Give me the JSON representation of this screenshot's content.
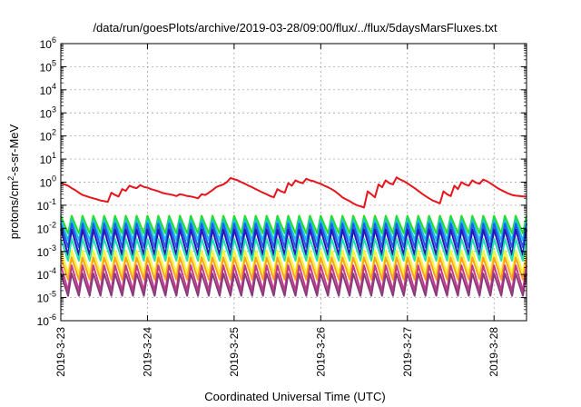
{
  "chart_data": {
    "type": "line",
    "title": "/data/run/goesPlots/archive/2019-03-28/09:00/flux/../flux/5daysMarsFluxes.txt",
    "xlabel": "Coordinated Universal Time (UTC)",
    "ylabel_pre": "protons/cm",
    "ylabel_sup": "2",
    "ylabel_post": "-s-sr-MeV",
    "y_scale": "log",
    "ylim": [
      1e-06,
      1000000.0
    ],
    "y_ticks": [
      {
        "base": "10",
        "exp": "-6"
      },
      {
        "base": "10",
        "exp": "-5"
      },
      {
        "base": "10",
        "exp": "-4"
      },
      {
        "base": "10",
        "exp": "-3"
      },
      {
        "base": "10",
        "exp": "-2"
      },
      {
        "base": "10",
        "exp": "-1"
      },
      {
        "base": "10",
        "exp": "0"
      },
      {
        "base": "10",
        "exp": "1"
      },
      {
        "base": "10",
        "exp": "2"
      },
      {
        "base": "10",
        "exp": "3"
      },
      {
        "base": "10",
        "exp": "4"
      },
      {
        "base": "10",
        "exp": "5"
      },
      {
        "base": "10",
        "exp": "6"
      }
    ],
    "x_ticks": [
      "2019-3-23",
      "2019-3-24",
      "2019-3-25",
      "2019-3-26",
      "2019-3-27",
      "2019-3-28"
    ],
    "xlim": [
      "2019-03-23 00:00",
      "2019-03-28 09:00"
    ],
    "grid": true,
    "series": [
      {
        "color": "#e8141b",
        "x": [
          "2019-03-23 00:00",
          "2019-03-23 01:00",
          "2019-03-23 02:00",
          "2019-03-23 03:00",
          "2019-03-23 04:00",
          "2019-03-23 05:00",
          "2019-03-23 06:00",
          "2019-03-23 07:00",
          "2019-03-23 08:00",
          "2019-03-23 09:00",
          "2019-03-23 10:00",
          "2019-03-23 11:00",
          "2019-03-23 12:00",
          "2019-03-23 13:00",
          "2019-03-23 14:00",
          "2019-03-23 15:00",
          "2019-03-23 16:00",
          "2019-03-23 17:00",
          "2019-03-23 18:00",
          "2019-03-23 19:00",
          "2019-03-23 20:00",
          "2019-03-23 21:00",
          "2019-03-23 22:00",
          "2019-03-23 23:00",
          "2019-03-24 00:00",
          "2019-03-24 01:00",
          "2019-03-24 02:00",
          "2019-03-24 03:00",
          "2019-03-24 04:00",
          "2019-03-24 05:00",
          "2019-03-24 06:00",
          "2019-03-24 07:00",
          "2019-03-24 08:00",
          "2019-03-24 09:00",
          "2019-03-24 10:00",
          "2019-03-24 11:00",
          "2019-03-24 12:00",
          "2019-03-24 13:00",
          "2019-03-24 14:00",
          "2019-03-24 15:00",
          "2019-03-24 16:00",
          "2019-03-24 17:00",
          "2019-03-24 18:00",
          "2019-03-24 19:00",
          "2019-03-24 20:00",
          "2019-03-24 21:00",
          "2019-03-24 22:00",
          "2019-03-24 23:00",
          "2019-03-25 00:00",
          "2019-03-25 01:00",
          "2019-03-25 02:00",
          "2019-03-25 03:00",
          "2019-03-25 04:00",
          "2019-03-25 05:00",
          "2019-03-25 06:00",
          "2019-03-25 07:00",
          "2019-03-25 08:00",
          "2019-03-25 09:00",
          "2019-03-25 10:00",
          "2019-03-25 11:00",
          "2019-03-25 12:00",
          "2019-03-25 13:00",
          "2019-03-25 14:00",
          "2019-03-25 15:00",
          "2019-03-25 16:00",
          "2019-03-25 17:00",
          "2019-03-25 18:00",
          "2019-03-25 19:00",
          "2019-03-25 20:00",
          "2019-03-25 21:00",
          "2019-03-25 22:00",
          "2019-03-25 23:00",
          "2019-03-26 00:00",
          "2019-03-26 01:00",
          "2019-03-26 02:00",
          "2019-03-26 03:00",
          "2019-03-26 04:00",
          "2019-03-26 05:00",
          "2019-03-26 06:00",
          "2019-03-26 07:00",
          "2019-03-26 08:00",
          "2019-03-26 09:00",
          "2019-03-26 10:00",
          "2019-03-26 11:00",
          "2019-03-26 12:00",
          "2019-03-26 13:00",
          "2019-03-26 14:00",
          "2019-03-26 15:00",
          "2019-03-26 16:00",
          "2019-03-26 17:00",
          "2019-03-26 18:00",
          "2019-03-26 19:00",
          "2019-03-26 20:00",
          "2019-03-26 21:00",
          "2019-03-26 22:00",
          "2019-03-26 23:00",
          "2019-03-27 00:00",
          "2019-03-27 01:00",
          "2019-03-27 02:00",
          "2019-03-27 03:00",
          "2019-03-27 04:00",
          "2019-03-27 05:00",
          "2019-03-27 06:00",
          "2019-03-27 07:00",
          "2019-03-27 08:00",
          "2019-03-27 09:00",
          "2019-03-27 10:00",
          "2019-03-27 11:00",
          "2019-03-27 12:00",
          "2019-03-27 13:00",
          "2019-03-27 14:00",
          "2019-03-27 15:00",
          "2019-03-27 16:00",
          "2019-03-27 17:00",
          "2019-03-27 18:00",
          "2019-03-27 19:00",
          "2019-03-27 20:00",
          "2019-03-27 21:00",
          "2019-03-27 22:00",
          "2019-03-27 23:00",
          "2019-03-28 00:00",
          "2019-03-28 01:00",
          "2019-03-28 02:00",
          "2019-03-28 03:00",
          "2019-03-28 04:00",
          "2019-03-28 05:00",
          "2019-03-28 06:00",
          "2019-03-28 07:00",
          "2019-03-28 08:00",
          "2019-03-28 09:00"
        ],
        "values": [
          0.9,
          0.8,
          0.7,
          0.55,
          0.45,
          0.35,
          0.28,
          0.25,
          0.22,
          0.2,
          0.18,
          0.16,
          0.15,
          0.14,
          0.35,
          0.28,
          0.24,
          0.5,
          0.42,
          0.7,
          0.6,
          0.55,
          0.75,
          0.62,
          0.58,
          0.5,
          0.45,
          0.4,
          0.35,
          0.32,
          0.3,
          0.28,
          0.25,
          0.3,
          0.28,
          0.25,
          0.24,
          0.22,
          0.2,
          0.3,
          0.28,
          0.35,
          0.45,
          0.6,
          0.7,
          0.8,
          1.0,
          1.5,
          1.35,
          1.2,
          1.0,
          0.85,
          0.7,
          0.6,
          0.5,
          0.42,
          0.35,
          0.3,
          0.25,
          0.22,
          0.5,
          0.4,
          0.35,
          0.9,
          0.7,
          1.2,
          1.0,
          0.9,
          1.4,
          1.2,
          1.1,
          0.95,
          0.85,
          0.7,
          0.6,
          0.5,
          0.4,
          0.3,
          0.22,
          0.18,
          0.15,
          0.12,
          0.1,
          0.09,
          0.08,
          0.4,
          0.3,
          0.22,
          0.8,
          0.6,
          1.2,
          0.9,
          0.8,
          1.6,
          1.3,
          1.1,
          0.9,
          0.7,
          0.55,
          0.42,
          0.32,
          0.25,
          0.2,
          0.16,
          0.14,
          0.12,
          0.4,
          0.3,
          0.25,
          0.7,
          0.5,
          1.0,
          0.8,
          0.7,
          1.2,
          0.95,
          0.85,
          1.3,
          1.1,
          0.9,
          0.7,
          0.55,
          0.45,
          0.38,
          0.32,
          0.28,
          0.26,
          0.25,
          0.24,
          0.24
        ]
      },
      {
        "color": "#22e01f",
        "peak": 0.035,
        "trough": 0.006
      },
      {
        "color": "#18c1ea",
        "peak": 0.024,
        "trough": 0.003
      },
      {
        "color": "#1d5ee8",
        "peak": 0.016,
        "trough": 0.0015
      },
      {
        "color": "#2a16b8",
        "peak": 0.009,
        "trough": 0.0007
      },
      {
        "color": "#1ee0b0",
        "peak": 0.0035,
        "trough": 0.0004
      },
      {
        "color": "#f5f53a",
        "peak": 0.0011,
        "trough": 0.00011
      },
      {
        "color": "#ffa31a",
        "peak": 0.00055,
        "trough": 6e-05
      },
      {
        "color": "#c23a8a",
        "peak": 0.00025,
        "trough": 2e-05
      },
      {
        "color": "#8a3a7a",
        "peak": 0.00011,
        "trough": 1.2e-05
      }
    ]
  }
}
